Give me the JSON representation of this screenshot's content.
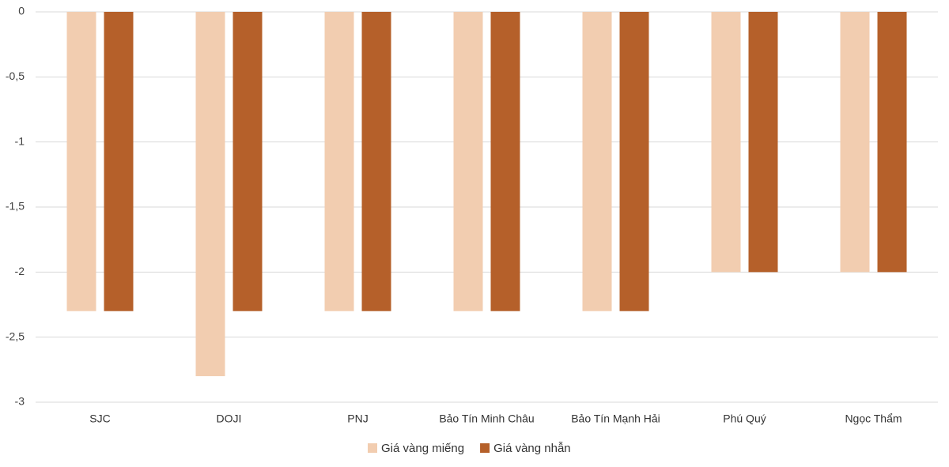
{
  "chart_data": {
    "type": "bar",
    "categories": [
      "SJC",
      "DOJI",
      "PNJ",
      "Bảo Tín Minh Châu",
      "Bảo Tín Mạnh Hải",
      "Phú Quý",
      "Ngọc Thẩm"
    ],
    "series": [
      {
        "name": "Giá vàng miếng",
        "color": "#f2cdb0",
        "values": [
          -2.3,
          -2.8,
          -2.3,
          -2.3,
          -2.3,
          -2,
          -2
        ]
      },
      {
        "name": "Giá vàng nhẫn",
        "color": "#b5602a",
        "values": [
          -2.3,
          -2.3,
          -2.3,
          -2.3,
          -2.3,
          -2,
          -2
        ]
      }
    ],
    "ylim": [
      -3,
      0
    ],
    "yticks": [
      0,
      {
        "value": -0.5,
        "label": "-0,5"
      },
      -1,
      {
        "value": -1.5,
        "label": "-1,5"
      },
      -2,
      {
        "value": -2.5,
        "label": "-2,5"
      },
      -3
    ],
    "grid": true,
    "legend": "bottom"
  }
}
